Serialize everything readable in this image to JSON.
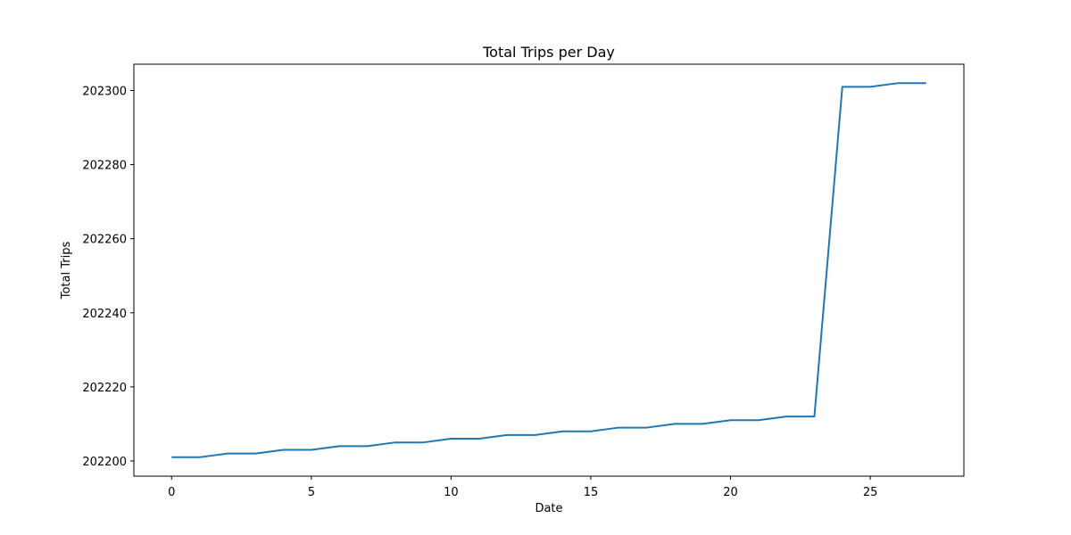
{
  "chart_data": {
    "type": "line",
    "title": "Total Trips per Day",
    "xlabel": "Date",
    "ylabel": "Total Trips",
    "xlim": [
      -1.35,
      28.35
    ],
    "ylim": [
      202195.9,
      202307.1
    ],
    "xticks": [
      0,
      5,
      10,
      15,
      20,
      25
    ],
    "yticks": [
      202200,
      202220,
      202240,
      202260,
      202280,
      202300
    ],
    "grid": false,
    "legend": "none",
    "series": [
      {
        "color": "#1f77b4",
        "x": [
          0,
          1,
          2,
          3,
          4,
          5,
          6,
          7,
          8,
          9,
          10,
          11,
          12,
          13,
          14,
          15,
          16,
          17,
          18,
          19,
          20,
          21,
          22,
          23,
          24,
          25,
          26,
          27
        ],
        "y": [
          202201,
          202201,
          202202,
          202202,
          202203,
          202203,
          202204,
          202204,
          202205,
          202205,
          202206,
          202206,
          202207,
          202207,
          202208,
          202208,
          202209,
          202209,
          202210,
          202210,
          202211,
          202211,
          202212,
          202212,
          202301,
          202301,
          202302,
          202302
        ]
      }
    ]
  }
}
